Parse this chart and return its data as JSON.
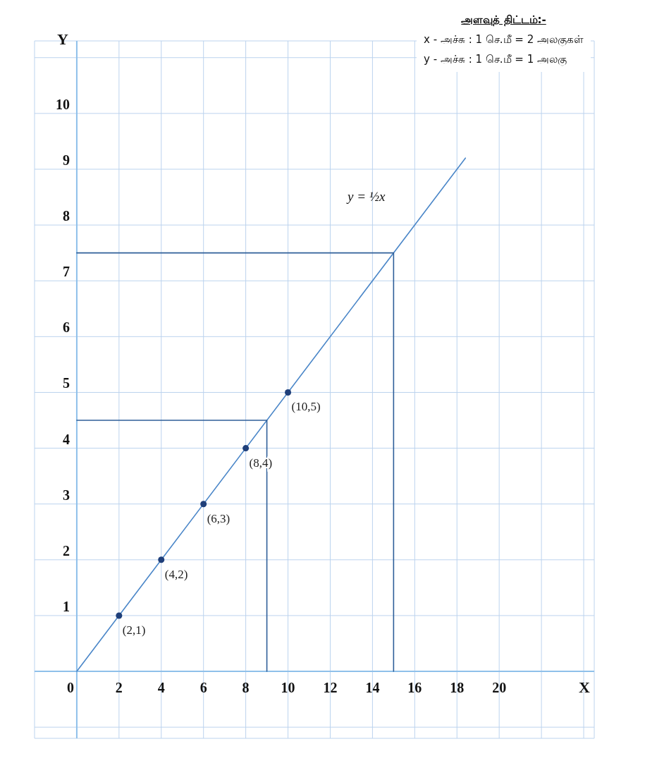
{
  "chart_data": {
    "type": "line",
    "xlabel": "X",
    "ylabel": "Y",
    "annotations": [
      "அளவுத் திட்டம்:-",
      "x - அச்சு : 1 செ.மீ = 2 அலகுகள்",
      "y - அச்சு : 1 செ.மீ = 1 அலகு",
      "y = ½x",
      {
        "text": "(2,1)",
        "x": 2,
        "y": 1
      },
      {
        "text": "(4,2)",
        "x": 4,
        "y": 2
      },
      {
        "text": "(6,3)",
        "x": 6,
        "y": 3
      },
      {
        "text": "(8,4)",
        "x": 8,
        "y": 4
      },
      {
        "text": "(10,5)",
        "x": 10,
        "y": 5
      }
    ],
    "xlim": [
      -2,
      24.5
    ],
    "ylim": [
      -1.2,
      11.3
    ],
    "xticks": [
      {
        "value": -2,
        "label": null
      },
      0,
      2,
      4,
      6,
      8,
      10,
      12,
      14,
      16,
      18,
      20,
      {
        "value": 22,
        "label": null
      },
      {
        "value": 24,
        "label": null
      }
    ],
    "yticks": [
      {
        "value": -1,
        "label": null
      },
      {
        "value": 0,
        "label": null
      },
      1,
      2,
      3,
      4,
      5,
      6,
      7,
      8,
      9,
      10,
      {
        "value": 11,
        "label": null
      }
    ],
    "grid": true,
    "marker": "none",
    "series": [
      {
        "color": "#4a86c8",
        "x": [
          0,
          18.4
        ],
        "values": [
          0,
          9.2
        ]
      },
      {
        "color": "#2f5f99",
        "x": [
          0,
          15,
          15
        ],
        "values": [
          7.5,
          7.5,
          0
        ]
      },
      {
        "color": "#2f5f99",
        "x": [
          0,
          9,
          9
        ],
        "values": [
          4.5,
          4.5,
          0
        ]
      },
      {
        "type": "scatter",
        "marker": "circle",
        "color": "#1f3f7a",
        "x": [
          2,
          4,
          6,
          8,
          10
        ],
        "values": [
          1,
          2,
          3,
          4,
          5
        ]
      }
    ]
  }
}
